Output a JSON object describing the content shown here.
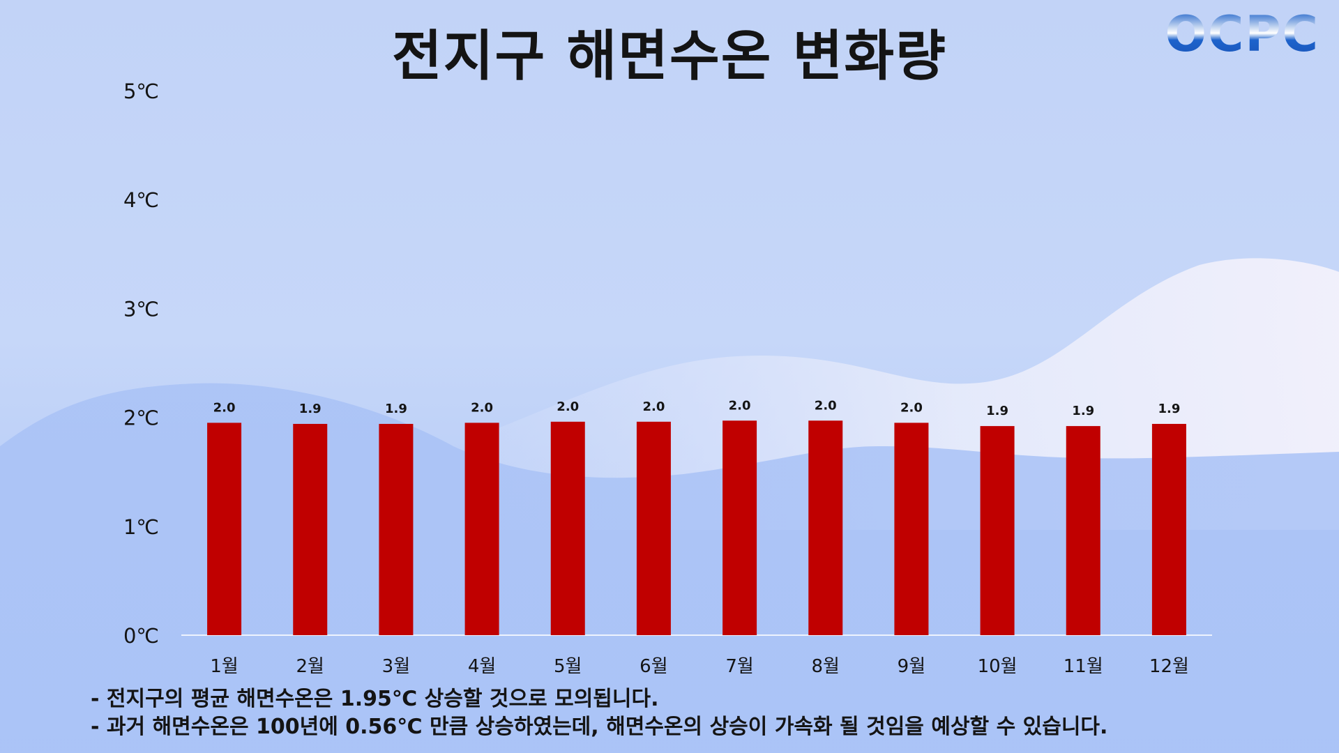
{
  "title": "전지구 해면수온 변화량",
  "logo": {
    "text": "OCPC"
  },
  "notes": [
    "- 전지구의 평균 해면수온은 1.95℃ 상승할 것으로 모의됩니다.",
    "- 과거 해면수온은 100년에 0.56℃ 만큼 상승하였는데, 해면수온의 상승이 가속화 될 것임을 예상할 수 있습니다."
  ],
  "colors": {
    "bar": "#c00000",
    "axis": "#ffffff",
    "text": "#141414"
  },
  "chart_data": {
    "type": "bar",
    "categories": [
      "1월",
      "2월",
      "3월",
      "4월",
      "5월",
      "6월",
      "7월",
      "8월",
      "9월",
      "10월",
      "11월",
      "12월"
    ],
    "values": [
      1.95,
      1.94,
      1.94,
      1.95,
      1.96,
      1.96,
      1.97,
      1.97,
      1.95,
      1.92,
      1.92,
      1.94
    ],
    "data_labels": [
      "2.0",
      "1.9",
      "1.9",
      "2.0",
      "2.0",
      "2.0",
      "2.0",
      "2.0",
      "2.0",
      "1.9",
      "1.9",
      "1.9"
    ],
    "y_ticks": [
      "0℃",
      "1℃",
      "2℃",
      "3℃",
      "4℃",
      "5℃"
    ],
    "ylim": [
      0,
      5
    ],
    "grid": false,
    "legend": "none"
  }
}
